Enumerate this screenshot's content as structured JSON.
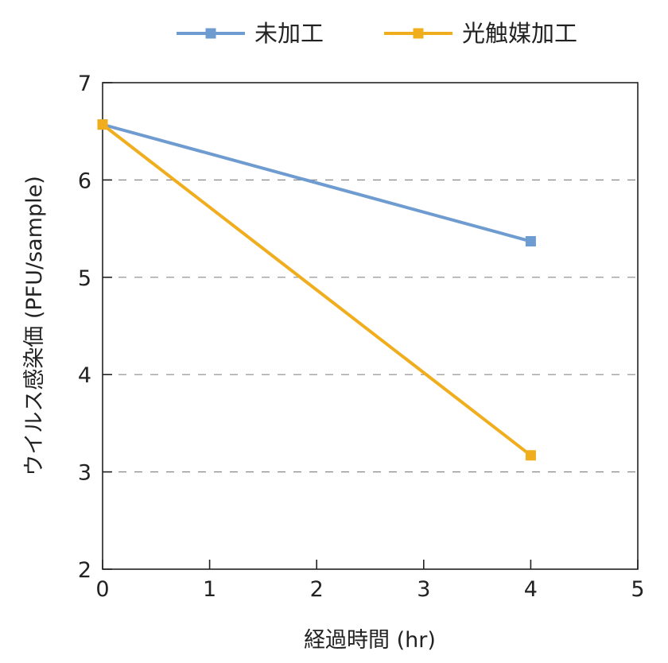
{
  "chart_data": {
    "type": "line",
    "xlabel": "経過時間 (hr)",
    "ylabel": "ウイルス感染価 (PFU/sample)",
    "xlim": [
      0,
      5
    ],
    "ylim": [
      2,
      7
    ],
    "xticks": [
      "0",
      "1",
      "2",
      "3",
      "4",
      "5"
    ],
    "yticks": [
      "2",
      "3",
      "4",
      "5",
      "6",
      "7"
    ],
    "grid": "horizontal-dashed",
    "legend": "top",
    "series": [
      {
        "name": "未加工",
        "color": "#6e9bd0",
        "x": [
          0,
          4
        ],
        "y": [
          6.57,
          5.37
        ]
      },
      {
        "name": "光触媒加工",
        "color": "#f0ae1e",
        "x": [
          0,
          4
        ],
        "y": [
          6.57,
          3.17
        ]
      }
    ]
  }
}
